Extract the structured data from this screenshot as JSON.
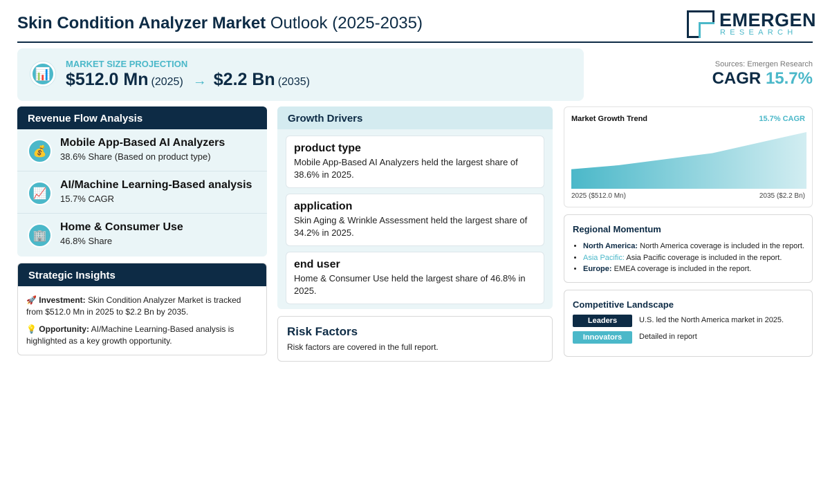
{
  "header": {
    "title_bold": "Skin Condition Analyzer Market",
    "title_rest": "Outlook (2025-2035)",
    "logo": {
      "name": "EMERGEN",
      "sub": "RESEARCH"
    }
  },
  "projection": {
    "label": "MARKET SIZE PROJECTION",
    "icon": "bar-chart-icon",
    "start_value": "$512.0 Mn",
    "start_year": "(2025)",
    "arrow": "→",
    "end_value": "$2.2 Bn",
    "end_year": "(2035)"
  },
  "summary": {
    "sources": "Sources: Emergen Research",
    "cagr_label": "CAGR",
    "cagr_value": "15.7%"
  },
  "revenue_flow": {
    "heading": "Revenue Flow Analysis",
    "items": [
      {
        "icon": "money-bag-icon",
        "glyph": "💰",
        "title": "Mobile App-Based AI Analyzers",
        "sub": "38.6% Share (Based on product type)"
      },
      {
        "icon": "trend-chart-icon",
        "glyph": "📈",
        "title": "AI/Machine Learning-Based analysis",
        "sub": "15.7% CAGR"
      },
      {
        "icon": "building-icon",
        "glyph": "🏢",
        "title": "Home & Consumer Use",
        "sub": "46.8% Share"
      }
    ]
  },
  "strategic": {
    "heading": "Strategic Insights",
    "investment_icon": "🚀",
    "investment_label": "Investment:",
    "investment_text": "Skin Condition Analyzer Market is tracked from $512.0 Mn in 2025 to $2.2 Bn by 2035.",
    "opportunity_icon": "💡",
    "opportunity_label": "Opportunity:",
    "opportunity_text": "AI/Machine Learning-Based analysis is highlighted as a key growth opportunity."
  },
  "drivers": {
    "heading": "Growth Drivers",
    "items": [
      {
        "title": "product type",
        "text": "Mobile App-Based AI Analyzers held the largest share of 38.6% in 2025."
      },
      {
        "title": "application",
        "text": "Skin Aging & Wrinkle Assessment held the largest share of 34.2% in 2025."
      },
      {
        "title": "end user",
        "text": "Home & Consumer Use held the largest share of 46.8% in 2025."
      }
    ]
  },
  "risk": {
    "title": "Risk Factors",
    "text": "Risk factors are covered in the full report."
  },
  "trend": {
    "title": "Market Growth Trend",
    "cagr": "15.7% CAGR",
    "start_label": "2025 ($512.0 Mn)",
    "end_label": "2035 ($2.2 Bn)"
  },
  "chart_data": {
    "type": "area",
    "x": [
      2025,
      2027,
      2031,
      2035
    ],
    "values": [
      0.512,
      0.69,
      1.24,
      2.2
    ],
    "unit": "Bn USD",
    "color": "#4bb8c9"
  },
  "regional": {
    "title": "Regional Momentum",
    "items": [
      {
        "label": "North America:",
        "text": "North America coverage is included in the report.",
        "accent": false
      },
      {
        "label": "Asia Pacific:",
        "text": "Asia Pacific coverage is included in the report.",
        "accent": true
      },
      {
        "label": "Europe:",
        "text": "EMEA coverage is included in the report.",
        "accent": false
      }
    ]
  },
  "competitive": {
    "title": "Competitive Landscape",
    "leaders_label": "Leaders",
    "leaders_text": "U.S. led the North America market in 2025.",
    "innovators_label": "Innovators",
    "innovators_text": "Detailed in report"
  },
  "colors": {
    "navy": "#0d2b45",
    "teal": "#4bb8c9",
    "panel": "#eaf5f7"
  }
}
